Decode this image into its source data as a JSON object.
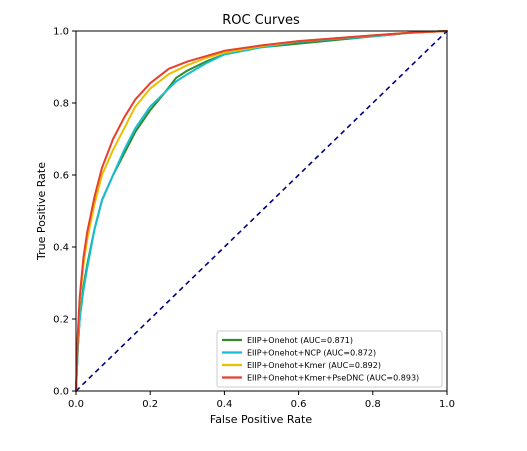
{
  "chart_data": {
    "type": "line",
    "title": "ROC Curves",
    "xlabel": "False Positive Rate",
    "ylabel": "True Positive Rate",
    "xlim": [
      0.0,
      1.0
    ],
    "ylim": [
      0.0,
      1.0
    ],
    "xticks": [
      "0.0",
      "0.2",
      "0.4",
      "0.6",
      "0.8",
      "1.0"
    ],
    "yticks": [
      "0.0",
      "0.2",
      "0.4",
      "0.6",
      "0.8",
      "1.0"
    ],
    "grid": false,
    "legend_position": "lower-right",
    "diagonal": {
      "color": "#000080",
      "style": "dashed",
      "x": [
        0,
        1
      ],
      "y": [
        0,
        1
      ]
    },
    "series": [
      {
        "name": "EIIP+Onehot  (AUC=0.871)",
        "color": "#2e8b2e",
        "x": [
          0,
          0.005,
          0.01,
          0.02,
          0.03,
          0.05,
          0.07,
          0.1,
          0.13,
          0.16,
          0.2,
          0.24,
          0.27,
          0.3,
          0.35,
          0.4,
          0.5,
          0.6,
          0.7,
          0.8,
          0.9,
          1.0
        ],
        "y": [
          0,
          0.12,
          0.2,
          0.29,
          0.35,
          0.45,
          0.53,
          0.6,
          0.66,
          0.72,
          0.78,
          0.83,
          0.87,
          0.89,
          0.915,
          0.935,
          0.955,
          0.965,
          0.975,
          0.985,
          0.995,
          1.0
        ]
      },
      {
        "name": "EIIP+Onehot+NCP  (AUC=0.872)",
        "color": "#17becf",
        "x": [
          0,
          0.005,
          0.01,
          0.02,
          0.03,
          0.05,
          0.07,
          0.1,
          0.13,
          0.16,
          0.2,
          0.24,
          0.27,
          0.3,
          0.35,
          0.4,
          0.5,
          0.6,
          0.7,
          0.8,
          0.9,
          1.0
        ],
        "y": [
          0,
          0.12,
          0.2,
          0.28,
          0.34,
          0.45,
          0.53,
          0.6,
          0.67,
          0.73,
          0.79,
          0.83,
          0.86,
          0.88,
          0.91,
          0.935,
          0.955,
          0.97,
          0.978,
          0.985,
          0.995,
          1.0
        ]
      },
      {
        "name": "EIIP+Onehot+Kmer  (AUC=0.892)",
        "color": "#e8c000",
        "x": [
          0,
          0.005,
          0.01,
          0.02,
          0.03,
          0.05,
          0.07,
          0.1,
          0.13,
          0.16,
          0.2,
          0.25,
          0.3,
          0.35,
          0.4,
          0.5,
          0.6,
          0.7,
          0.8,
          0.9,
          1.0
        ],
        "y": [
          0,
          0.15,
          0.25,
          0.35,
          0.42,
          0.52,
          0.6,
          0.67,
          0.73,
          0.79,
          0.84,
          0.88,
          0.905,
          0.925,
          0.94,
          0.958,
          0.972,
          0.98,
          0.988,
          0.995,
          1.0
        ]
      },
      {
        "name": "EIIP+Onehot+Kmer+PseDNC  (AUC=0.893)",
        "color": "#e8402a",
        "x": [
          0,
          0.005,
          0.01,
          0.02,
          0.03,
          0.05,
          0.07,
          0.1,
          0.13,
          0.16,
          0.2,
          0.25,
          0.3,
          0.35,
          0.4,
          0.5,
          0.6,
          0.7,
          0.8,
          0.9,
          1.0
        ],
        "y": [
          0,
          0.16,
          0.26,
          0.37,
          0.44,
          0.54,
          0.62,
          0.7,
          0.76,
          0.81,
          0.855,
          0.895,
          0.915,
          0.93,
          0.945,
          0.96,
          0.972,
          0.98,
          0.988,
          0.995,
          1.0
        ]
      }
    ]
  }
}
